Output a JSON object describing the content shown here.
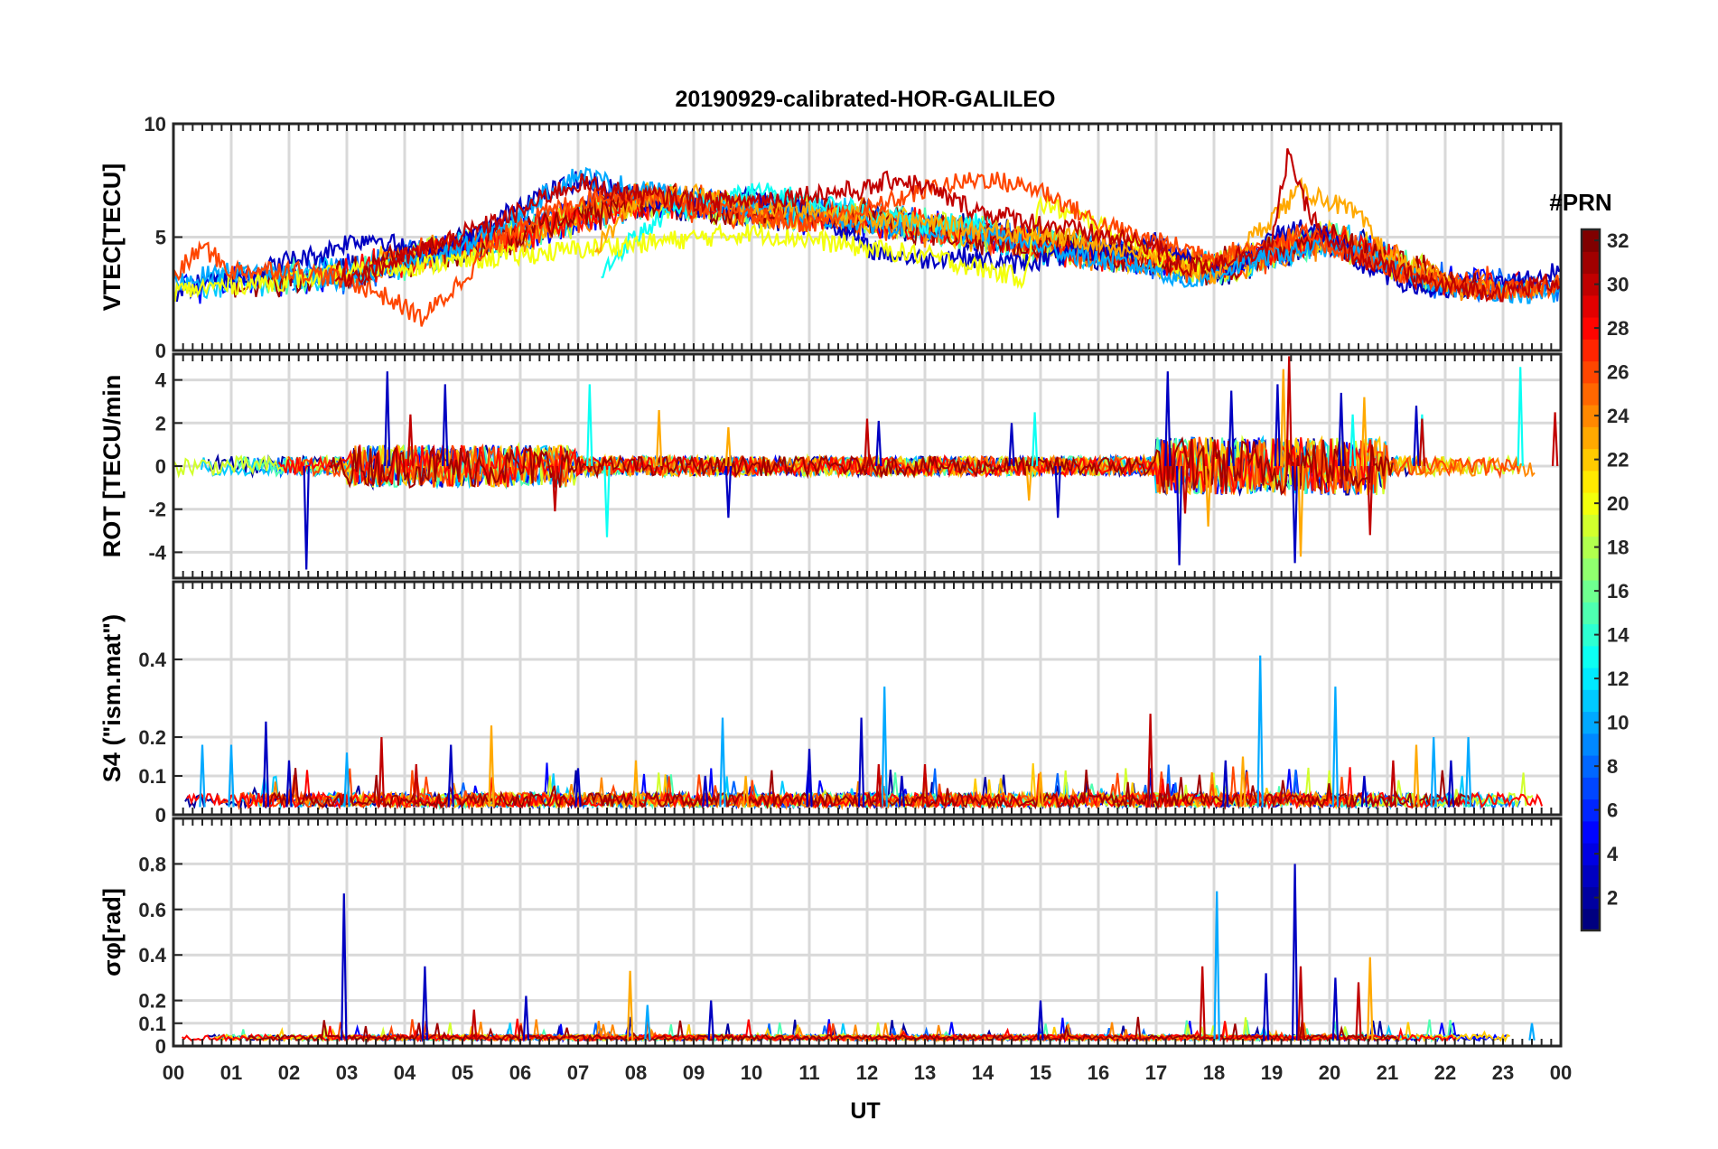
{
  "chart_data": {
    "type": "line",
    "title": "20190929-calibrated-HOR-GALILEO",
    "xlabel": "UT",
    "x_ticks": [
      "00",
      "01",
      "02",
      "03",
      "04",
      "05",
      "06",
      "07",
      "08",
      "09",
      "10",
      "11",
      "12",
      "13",
      "14",
      "15",
      "16",
      "17",
      "18",
      "19",
      "20",
      "21",
      "22",
      "23",
      "00"
    ],
    "xlim_hours": [
      0,
      24
    ],
    "colorbar": {
      "title": "#PRN",
      "range": [
        1,
        32
      ],
      "ticks": [
        2,
        4,
        6,
        8,
        10,
        12,
        14,
        16,
        18,
        20,
        22,
        24,
        26,
        28,
        30,
        32
      ],
      "tick_labels": [
        "2",
        "4",
        "6",
        "8",
        "10",
        "12",
        "14",
        "16",
        "18",
        "20",
        "22",
        "24",
        "26",
        "28",
        "30",
        "32"
      ],
      "colormap": "jet",
      "levels": 32
    },
    "panels": [
      {
        "id": "vtec",
        "ylabel": "VTEC[TECU]",
        "ylim": [
          0,
          10
        ],
        "yticks": [
          0,
          5,
          10
        ],
        "ytick_labels": [
          "0",
          "5",
          "10"
        ],
        "baseline": 3.5,
        "series": [
          {
            "prn": 3,
            "hours": [
              0,
              0.5,
              1,
              1.5,
              2,
              2.5,
              3,
              3.5,
              4,
              4.5,
              5,
              5.5,
              6,
              6.5,
              7,
              7.5,
              8,
              8.5,
              9,
              9.5,
              10,
              10.5,
              11,
              11.5,
              12,
              12.5,
              13,
              13.5,
              14,
              14.5,
              15,
              15.5,
              16,
              16.5,
              17,
              17.5,
              18,
              18.5,
              19,
              19.5,
              20,
              20.5,
              21,
              21.5,
              22,
              22.5,
              23,
              23.5,
              24
            ],
            "values": [
              2.5,
              3,
              3.2,
              3.5,
              4,
              4.2,
              4.8,
              5,
              4.5,
              4.2,
              4.8,
              5.5,
              6.5,
              7,
              7.5,
              7.2,
              6.8,
              6.5,
              6.2,
              6.5,
              6.8,
              6.5,
              6.2,
              5.5,
              4.5,
              4.2,
              4,
              4.2,
              4,
              3.8,
              4,
              4.2,
              4.5,
              4.3,
              4.8,
              4.2,
              3.5,
              4,
              5,
              5.5,
              5,
              3.8,
              3.3,
              2.8,
              2.5,
              2.6,
              3,
              3.2,
              3.5
            ]
          },
          {
            "prn": 10,
            "hours": [
              0,
              1,
              2,
              3,
              4,
              5,
              6,
              6.5,
              7,
              7.5,
              8,
              9,
              10,
              11,
              12,
              13,
              14,
              15,
              16,
              17,
              17.5,
              18,
              19,
              20,
              21,
              22,
              23,
              24
            ],
            "values": [
              3,
              3.5,
              3.4,
              3,
              3.8,
              4.5,
              6,
              7,
              7.8,
              7.4,
              7.2,
              6.6,
              6.4,
              6,
              5.6,
              5.4,
              5.2,
              4.6,
              4,
              3.6,
              3,
              3.4,
              4.2,
              4.6,
              3.8,
              2.8,
              2.6,
              2.4
            ]
          },
          {
            "prn": 13,
            "hours": [
              7.4,
              7.8,
              8.5,
              9.5,
              10,
              10.5,
              11,
              12,
              13,
              14,
              14.2
            ],
            "values": [
              3.3,
              4.6,
              6,
              6.6,
              7,
              6.9,
              6.6,
              6.1,
              5.6,
              5.6,
              5.5
            ]
          },
          {
            "prn": 20,
            "hours": [
              0,
              1,
              2,
              3,
              4,
              10,
              11,
              12,
              13,
              14,
              14.7,
              15,
              16,
              17,
              17.5,
              18
            ],
            "values": [
              2.6,
              2.9,
              3.1,
              3.4,
              3.7,
              5.2,
              4.9,
              4.5,
              4.2,
              3.6,
              3.2,
              6.5,
              5.6,
              4.2,
              3.6,
              3.9
            ]
          },
          {
            "prn": 23,
            "hours": [
              7.3,
              8,
              9,
              9.5,
              10,
              11,
              12,
              13,
              14,
              15,
              16,
              17,
              18,
              19.5,
              20,
              20.5,
              21,
              22,
              23,
              24
            ],
            "values": [
              4.5,
              6.6,
              6.9,
              6.6,
              6.3,
              6.1,
              5.9,
              5.6,
              5.3,
              5.1,
              4.8,
              4.1,
              3.3,
              7.1,
              6.6,
              5.9,
              4.2,
              2.9,
              2.6,
              2.9
            ]
          },
          {
            "prn": 26,
            "hours": [
              0,
              0.5,
              1,
              2,
              3,
              3.5,
              4,
              4.3,
              4.8,
              5.5,
              6,
              6.5,
              7,
              7.5,
              8,
              8.5,
              9,
              9.5,
              10,
              11,
              12,
              13,
              14,
              15,
              16,
              17,
              18,
              19,
              19.5,
              20,
              21,
              22,
              23,
              24
            ],
            "values": [
              3.2,
              4.6,
              3.5,
              3.6,
              3.1,
              2.6,
              1.9,
              1.4,
              2.6,
              4.6,
              5.6,
              6.1,
              6.6,
              6.9,
              6.9,
              6.6,
              6.3,
              6.1,
              5.9,
              5.6,
              6.2,
              7.1,
              7.6,
              7.1,
              5.6,
              4.8,
              4.2,
              4.7,
              5.2,
              4.6,
              3.6,
              2.9,
              2.6,
              2.9
            ]
          },
          {
            "prn": 30,
            "hours": [
              2.8,
              3.5,
              4,
              5,
              6,
              6.5,
              7,
              7.5,
              8,
              9,
              10,
              11,
              12,
              12.5,
              13,
              13.5,
              14,
              17,
              17.5,
              18,
              19,
              19.3,
              19.5,
              20,
              21,
              22,
              23,
              24
            ],
            "values": [
              3.1,
              3.6,
              4.1,
              5.1,
              6.1,
              6.9,
              7.4,
              7.1,
              6.9,
              6.6,
              6.6,
              6.9,
              7.1,
              7.6,
              7.2,
              6.6,
              6.1,
              4.6,
              3.6,
              3.9,
              4.6,
              9,
              6.8,
              4.6,
              3.6,
              2.8,
              2.6,
              3.1
            ]
          }
        ]
      },
      {
        "id": "rot",
        "ylabel": "ROT [TECU/min",
        "ylim": [
          -5.2,
          5.2
        ],
        "yticks": [
          -4,
          -2,
          0,
          2,
          4
        ],
        "ytick_labels": [
          "-4",
          "-2",
          "0",
          "2",
          "4"
        ],
        "baseline": 0,
        "series": [
          {
            "prn": 3,
            "hours": [
              2.3,
              3.7,
              4.7,
              9.6,
              12.2,
              14.5,
              15.3,
              17.2,
              17.4,
              18.3,
              19.1,
              19.4,
              20.2,
              21.5
            ],
            "values": [
              -4.8,
              4.4,
              3.8,
              -2.4,
              2.1,
              2,
              -2.4,
              4.4,
              -4.6,
              3.5,
              3.8,
              -4.5,
              3.4,
              2.8
            ]
          },
          {
            "prn": 13,
            "hours": [
              7.2,
              7.5,
              14.9,
              20.4,
              21.6,
              23.3
            ],
            "values": [
              3.8,
              -3.3,
              2.5,
              2.4,
              2.4,
              4.6
            ]
          },
          {
            "prn": 23,
            "hours": [
              8.4,
              9.6,
              14.8,
              17.9,
              19.2,
              19.5,
              20.6
            ],
            "values": [
              2.6,
              1.8,
              -1.6,
              -2.8,
              4.5,
              -4.2,
              3.2
            ]
          },
          {
            "prn": 30,
            "hours": [
              4.1,
              6.6,
              12,
              17.5,
              19.3,
              20.7,
              21.6,
              23.9
            ],
            "values": [
              2.4,
              -2.1,
              2.2,
              -2.2,
              5.1,
              -3.2,
              2.2,
              2.5
            ]
          }
        ]
      },
      {
        "id": "s4",
        "ylabel": "S4 (\"ism.mat\")",
        "ylim": [
          0,
          0.6
        ],
        "yticks": [
          0,
          0.1,
          0.2,
          0.4
        ],
        "ytick_labels": [
          "0",
          "0.1",
          "0.2",
          "0.4"
        ],
        "baseline": 0.02,
        "series": [
          {
            "prn": 3,
            "hours": [
              1.6,
              2,
              4.8,
              7,
              9.2,
              11,
              11.9,
              12.6,
              16.9,
              18.2,
              20.6,
              22.1
            ],
            "values": [
              0.24,
              0.14,
              0.18,
              0.12,
              0.1,
              0.17,
              0.25,
              0.1,
              0.12,
              0.14,
              0.1,
              0.14
            ]
          },
          {
            "prn": 10,
            "hours": [
              0.5,
              1,
              3,
              9.5,
              12.3,
              18.8,
              20.1,
              21.8,
              22.4
            ],
            "values": [
              0.18,
              0.18,
              0.16,
              0.25,
              0.33,
              0.41,
              0.33,
              0.2,
              0.2
            ]
          },
          {
            "prn": 23,
            "hours": [
              5.5,
              8,
              9.9,
              15,
              18.5,
              21.5
            ],
            "values": [
              0.23,
              0.14,
              0.1,
              0.11,
              0.15,
              0.18
            ]
          },
          {
            "prn": 30,
            "hours": [
              3.6,
              4.2,
              12.2,
              13,
              16.9,
              17.2,
              21.1
            ],
            "values": [
              0.2,
              0.13,
              0.13,
              0.13,
              0.26,
              0.08,
              0.14
            ]
          }
        ]
      },
      {
        "id": "sigma_phi",
        "ylabel": "σφ[rad]",
        "ylim": [
          0,
          1
        ],
        "yticks": [
          0,
          0.1,
          0.2,
          0.4,
          0.6,
          0.8
        ],
        "ytick_labels": [
          "0",
          "0.1",
          "0.2",
          "0.4",
          "0.6",
          "0.8"
        ],
        "baseline": 0.025,
        "series": [
          {
            "prn": 3,
            "hours": [
              2.95,
              4.35,
              6.1,
              9.3,
              15,
              18.9,
              19.4,
              20.1
            ],
            "values": [
              0.67,
              0.35,
              0.22,
              0.2,
              0.2,
              0.32,
              0.8,
              0.3
            ]
          },
          {
            "prn": 10,
            "hours": [
              8.2,
              18.05,
              23.5
            ],
            "values": [
              0.18,
              0.68,
              0.1
            ]
          },
          {
            "prn": 23,
            "hours": [
              7.9,
              20.7
            ],
            "values": [
              0.33,
              0.39
            ]
          },
          {
            "prn": 30,
            "hours": [
              5.2,
              17.8,
              19.5,
              20.5
            ],
            "values": [
              0.16,
              0.35,
              0.35,
              0.28
            ]
          }
        ]
      }
    ]
  }
}
